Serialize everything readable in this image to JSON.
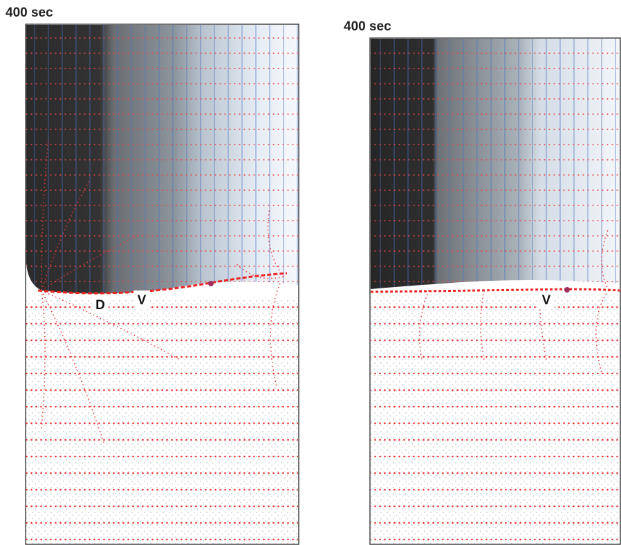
{
  "panels": [
    {
      "title": "400 sec",
      "labels": [
        "D",
        "V"
      ]
    },
    {
      "title": "400 sec",
      "labels": [
        "V"
      ]
    }
  ]
}
